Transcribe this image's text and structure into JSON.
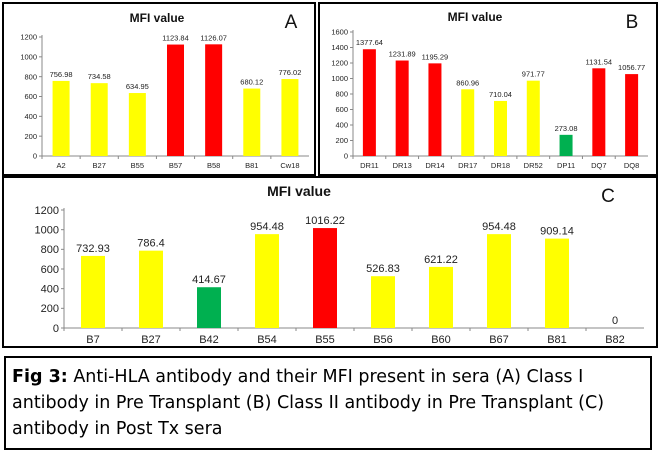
{
  "colors": {
    "yellow": "#ffff00",
    "red": "#ff0000",
    "green": "#00b050"
  },
  "caption": {
    "label": "Fig 3:",
    "text": " Anti-HLA antibody and their MFI present in sera (A) Class I antibody in Pre Transplant (B) Class II antibody in Pre Transplant (C) antibody in Post Tx sera"
  },
  "chart_data": [
    {
      "panel": "A",
      "type": "bar",
      "title": "MFI value",
      "categories": [
        "A2",
        "B27",
        "B55",
        "B57",
        "B58",
        "B81",
        "Cw18"
      ],
      "values": [
        756.98,
        734.58,
        634.95,
        1123.84,
        1126.07,
        680.12,
        776.02
      ],
      "value_labels": [
        "756.98",
        "734.58",
        "634.95",
        "1123.84",
        "1126.07",
        "680.12",
        "776.02"
      ],
      "bar_colors": [
        "yellow",
        "yellow",
        "yellow",
        "red",
        "red",
        "yellow",
        "yellow"
      ],
      "ylim": [
        0,
        1200
      ],
      "yticks": [
        0,
        200,
        400,
        600,
        800,
        1000,
        1200
      ],
      "grid": false
    },
    {
      "panel": "B",
      "type": "bar",
      "title": "MFI value",
      "categories": [
        "DR11",
        "DR13",
        "DR14",
        "DR17",
        "DR18",
        "DR52",
        "DP11",
        "DQ7",
        "DQ8"
      ],
      "values": [
        1377.64,
        1231.89,
        1195.29,
        860.96,
        710.04,
        971.77,
        273.08,
        1131.54,
        1056.77
      ],
      "value_labels": [
        "1377.64",
        "1231.89",
        "1195.29",
        "860.96",
        "710.04",
        "971.77",
        "273.08",
        "1131.54",
        "1056.77"
      ],
      "bar_colors": [
        "red",
        "red",
        "red",
        "yellow",
        "yellow",
        "yellow",
        "green",
        "red",
        "red"
      ],
      "ylim": [
        0,
        1600
      ],
      "yticks": [
        0,
        200,
        400,
        600,
        800,
        1000,
        1200,
        1400,
        1600
      ],
      "grid": false
    },
    {
      "panel": "C",
      "type": "bar",
      "title": "MFI value",
      "categories": [
        "B7",
        "B27",
        "B42",
        "B54",
        "B55",
        "B56",
        "B60",
        "B67",
        "B81",
        "B82"
      ],
      "values": [
        732.93,
        786.4,
        414.67,
        954.48,
        1016.22,
        526.83,
        621.22,
        954.48,
        909.14,
        0
      ],
      "value_labels": [
        "732.93",
        "786.4",
        "414.67",
        "954.48",
        "1016.22",
        "526.83",
        "621.22",
        "954.48",
        "909.14",
        "0"
      ],
      "bar_colors": [
        "yellow",
        "yellow",
        "green",
        "yellow",
        "red",
        "yellow",
        "yellow",
        "yellow",
        "yellow",
        "yellow"
      ],
      "ylim": [
        0,
        1200
      ],
      "yticks": [
        0,
        200,
        400,
        600,
        800,
        1000,
        1200
      ],
      "grid": false
    }
  ]
}
